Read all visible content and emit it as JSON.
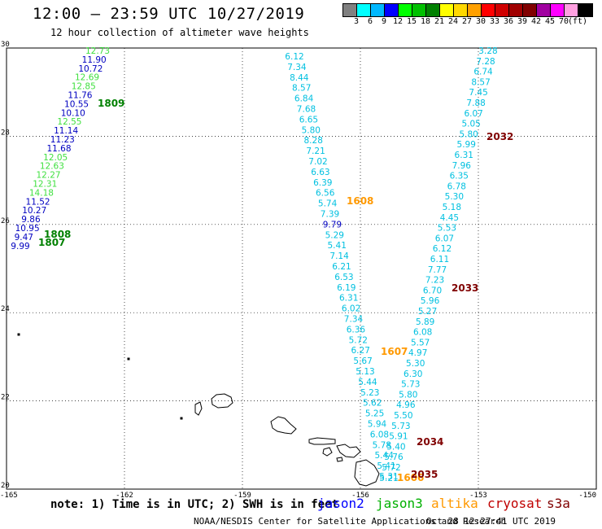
{
  "header": {
    "title": "12:00 – 23:59 UTC 10/27/2019",
    "subtitle": "12 hour collection of altimeter wave heights"
  },
  "scale": {
    "colors": [
      "#808080",
      "#00ffff",
      "#00b8ff",
      "#0000ff",
      "#00ff00",
      "#00c000",
      "#008000",
      "#ffff00",
      "#ffd800",
      "#ffa000",
      "#ff0000",
      "#d00000",
      "#a00000",
      "#800000",
      "#a000a0",
      "#ff00ff",
      "#ffa0e0",
      "#000000"
    ],
    "labels": [
      "3",
      "6",
      "9",
      "12",
      "15",
      "18",
      "21",
      "24",
      "27",
      "30",
      "33",
      "36",
      "39",
      "42",
      "45",
      "70",
      "(ft)"
    ]
  },
  "axes": {
    "x_ticks": [
      "-165",
      "-162",
      "-159",
      "-156",
      "-153",
      "-150"
    ],
    "y_ticks": [
      "30",
      "28",
      "26",
      "24",
      "22",
      "20"
    ],
    "lon_range": [
      -165,
      -150
    ],
    "lat_range": [
      20,
      30
    ]
  },
  "tracks": {
    "west": {
      "values": [
        "12.73",
        "11.90",
        "10.72",
        "12.69",
        "12.85",
        "11.76",
        "10.55",
        "10.10",
        "12.55",
        "11.14",
        "11.23",
        "11.68",
        "12.05",
        "12.63",
        "12.27",
        "12.31",
        "14.18",
        "11.52",
        "10.27",
        "9.86",
        "10.95",
        "9.47",
        "9.99"
      ],
      "colors": [
        "#40e040",
        "#0000c0",
        "#0000c0",
        "#40e040",
        "#40e040",
        "#0000c0",
        "#0000c0",
        "#0000c0",
        "#40e040",
        "#0000c0",
        "#0000c0",
        "#0000c0",
        "#40e040",
        "#40e040",
        "#40e040",
        "#40e040",
        "#40e040",
        "#0000c0",
        "#0000c0",
        "#0000c0",
        "#0000c0",
        "#0000c0",
        "#0000c0"
      ],
      "times": [
        {
          "text": "1809",
          "color": "#008000"
        },
        {
          "text": "1808",
          "color": "#008000"
        },
        {
          "text": "1807",
          "color": "#008000"
        }
      ]
    },
    "middle": {
      "values": [
        "6.12",
        "7.34",
        "8.44",
        "8.57",
        "6.84",
        "7.68",
        "6.65",
        "5.80",
        "8.28",
        "7.21",
        "7.02",
        "6.63",
        "6.39",
        "6.56",
        "5.74",
        "7.39",
        "9.79",
        "5.29",
        "5.41",
        "7.14",
        "6.21",
        "6.53",
        "6.19",
        "6.31",
        "6.02",
        "7.34",
        "6.36",
        "5.72",
        "6.27",
        "5.67",
        "5.13",
        "5.44",
        "5.23",
        "5.62",
        "5.25",
        "5.94",
        "6.08",
        "5.78",
        "5.44",
        "5.41",
        "5.31"
      ],
      "colors": [
        "#00c0e0",
        "#00c0e0",
        "#00c0e0",
        "#00c0e0",
        "#00c0e0",
        "#00c0e0",
        "#00c0e0",
        "#00c0e0",
        "#00c0e0",
        "#00c0e0",
        "#00c0e0",
        "#00c0e0",
        "#00c0e0",
        "#00c0e0",
        "#00c0e0",
        "#00c0e0",
        "#0000c0",
        "#00c0e0",
        "#00c0e0",
        "#00c0e0",
        "#00c0e0",
        "#00c0e0",
        "#00c0e0",
        "#00c0e0",
        "#00c0e0",
        "#00c0e0",
        "#00c0e0",
        "#00c0e0",
        "#00c0e0",
        "#00c0e0",
        "#00c0e0",
        "#00c0e0",
        "#00c0e0",
        "#00c0e0",
        "#00c0e0",
        "#00c0e0",
        "#00c0e0",
        "#00c0e0",
        "#00c0e0",
        "#00c0e0",
        "#00c0e0"
      ],
      "times": [
        {
          "text": "1608",
          "color": "#ff9900"
        },
        {
          "text": "1607",
          "color": "#ff9900"
        },
        {
          "text": "1606",
          "color": "#ff9900"
        }
      ]
    },
    "east": {
      "values": [
        "3.28",
        "7.28",
        "6.74",
        "8.57",
        "7.45",
        "7.88",
        "6.07",
        "5.05",
        "5.80",
        "5.99",
        "6.31",
        "7.96",
        "6.35",
        "6.78",
        "5.30",
        "5.18",
        "4.45",
        "5.53",
        "6.07",
        "6.12",
        "6.11",
        "7.77",
        "7.23",
        "6.70",
        "5.96",
        "5.27",
        "5.89",
        "6.08",
        "5.57",
        "4.97",
        "5.30",
        "6.30",
        "5.73",
        "5.80",
        "4.96",
        "5.50",
        "5.73",
        "5.91",
        "5.40",
        "5.76",
        "5.72",
        "5.21"
      ],
      "colors": [
        "#00c0e0",
        "#00c0e0",
        "#00c0e0",
        "#00c0e0",
        "#00c0e0",
        "#00c0e0",
        "#00c0e0",
        "#00c0e0",
        "#00c0e0",
        "#00c0e0",
        "#00c0e0",
        "#00c0e0",
        "#00c0e0",
        "#00c0e0",
        "#00c0e0",
        "#00c0e0",
        "#00c0e0",
        "#00c0e0",
        "#00c0e0",
        "#00c0e0",
        "#00c0e0",
        "#00c0e0",
        "#00c0e0",
        "#00c0e0",
        "#00c0e0",
        "#00c0e0",
        "#00c0e0",
        "#00c0e0",
        "#00c0e0",
        "#00c0e0",
        "#00c0e0",
        "#00c0e0",
        "#00c0e0",
        "#00c0e0",
        "#00c0e0",
        "#00c0e0",
        "#00c0e0",
        "#00c0e0",
        "#00c0e0",
        "#00c0e0",
        "#00c0e0",
        "#00c0e0"
      ],
      "times": [
        {
          "text": "2032",
          "color": "#800000"
        },
        {
          "text": "2033",
          "color": "#800000"
        },
        {
          "text": "2034",
          "color": "#800000"
        },
        {
          "text": "2035",
          "color": "#800000"
        }
      ]
    }
  },
  "legend": {
    "note": "note: 1) Time is in UTC; 2) SWH is in feet",
    "items": [
      {
        "name": "jason2",
        "color": "#0000ff"
      },
      {
        "name": "jason3",
        "color": "#00b000"
      },
      {
        "name": "altika",
        "color": "#ff9900"
      },
      {
        "name": "cryosat",
        "color": "#c00000"
      },
      {
        "name": "s3a",
        "color": "#800000"
      }
    ]
  },
  "footer": {
    "credit": "NOAA/NESDIS Center for Satellite Applications and Research",
    "timestamp": "Oct 28 12:27:41 UTC 2019"
  }
}
